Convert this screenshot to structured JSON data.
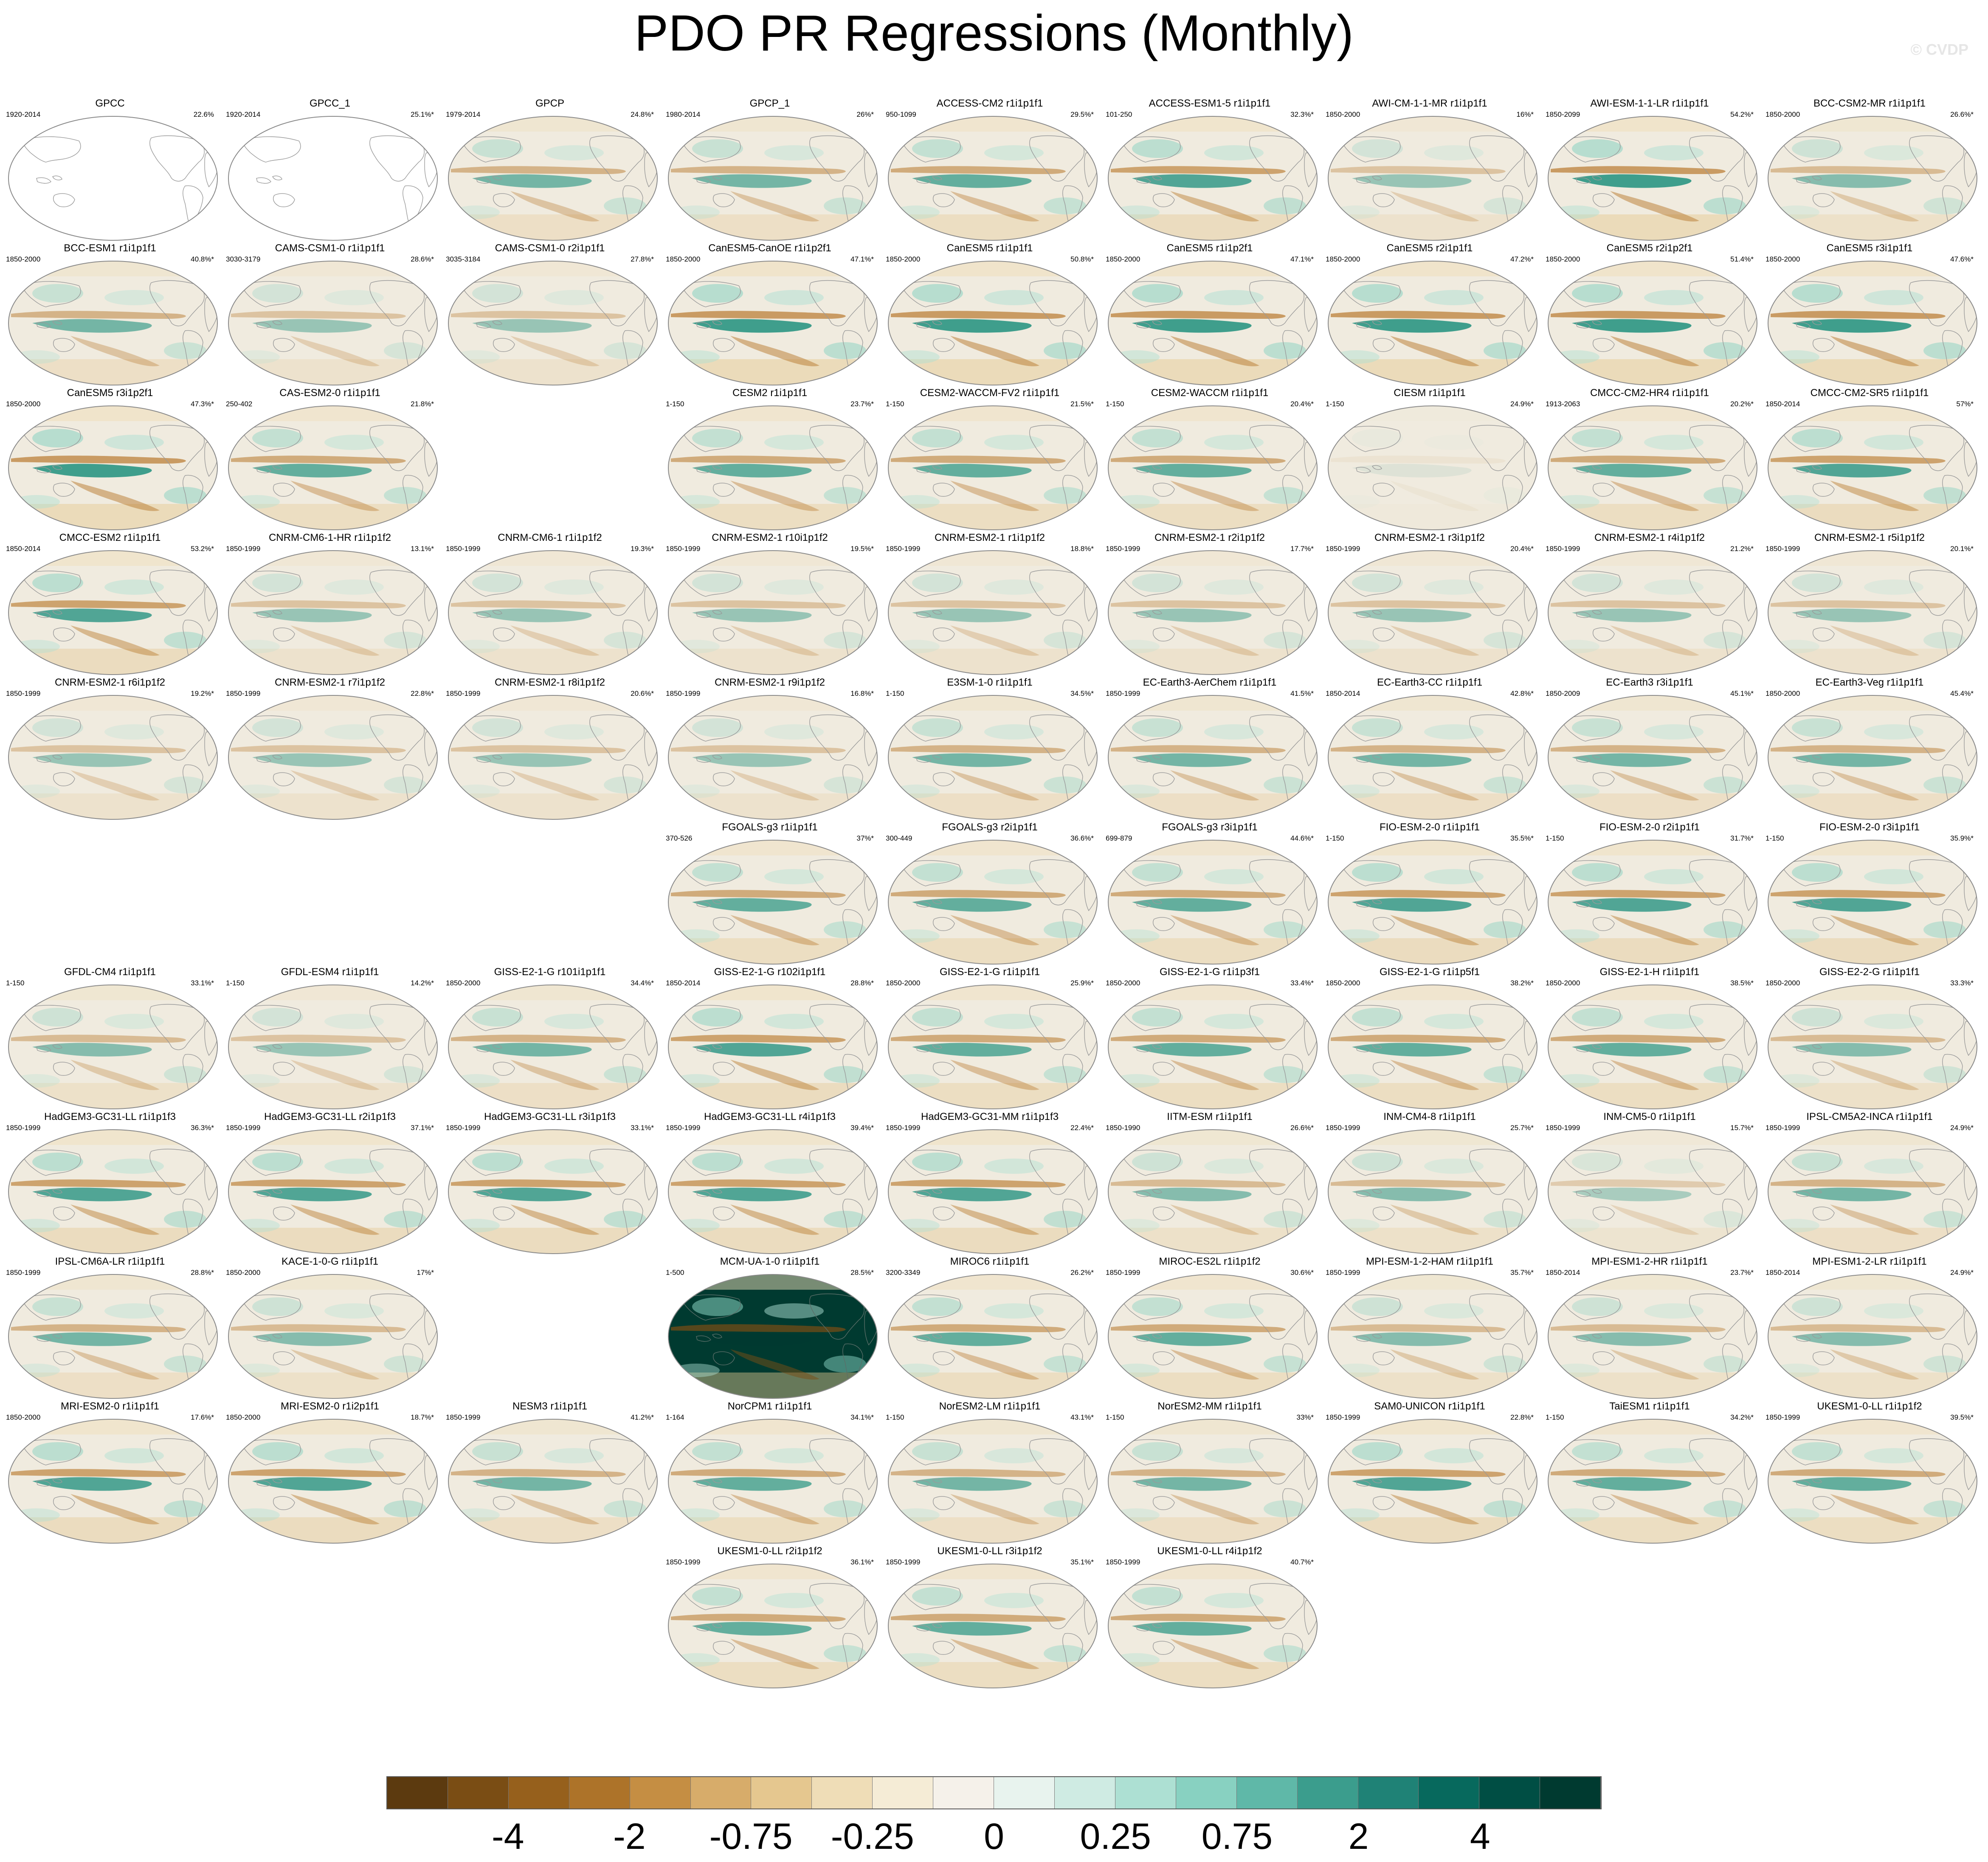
{
  "title": "PDO PR Regressions (Monthly)",
  "watermark": "© CVDP",
  "colors": {
    "dry_strong": "#b8792d",
    "wet_strong": "#20907e",
    "ocean_neutral": "#f0ebdf",
    "land_neutral": "#f5f1e6",
    "coast": "#9a9a9a"
  },
  "chart_data": {
    "type": "heatmap",
    "description_fields": "small-multiple global maps of precipitation regression on the PDO; each panel shows model name, analysis period and percent variance explained",
    "colorbar": {
      "colors": [
        "#5c3a0f",
        "#7a4d14",
        "#96601c",
        "#ad7329",
        "#c58e43",
        "#d7ac6a",
        "#e5c78f",
        "#efddb7",
        "#f5ecd6",
        "#f5f1ea",
        "#e8f3ee",
        "#cfebe3",
        "#ade0d3",
        "#88d1c1",
        "#5fb8a8",
        "#3b9d8d",
        "#1f8276",
        "#07695d",
        "#004e44",
        "#003a30"
      ],
      "tick_labels": [
        "-4",
        "-2",
        "-0.75",
        "-0.25",
        "0",
        "0.25",
        "0.75",
        "2",
        "4"
      ],
      "tick_boundaries": [
        2,
        4,
        6,
        8,
        10,
        12,
        14,
        16,
        18
      ]
    },
    "panels": [
      {
        "row": 0,
        "col": 0,
        "title": "GPCC",
        "years": "1920-2014",
        "pct": "22.6%",
        "intensity": 0,
        "blank": true
      },
      {
        "row": 0,
        "col": 1,
        "title": "GPCC_1",
        "years": "1920-2014",
        "pct": "25.1%*",
        "intensity": 0,
        "blank": true
      },
      {
        "row": 0,
        "col": 2,
        "title": "GPCP",
        "years": "1979-2014",
        "pct": "24.8%*",
        "intensity": 0.7
      },
      {
        "row": 0,
        "col": 3,
        "title": "GPCP_1",
        "years": "1980-2014",
        "pct": "26%*",
        "intensity": 0.7
      },
      {
        "row": 0,
        "col": 4,
        "title": "ACCESS-CM2 r1i1p1f1",
        "years": "950-1099",
        "pct": "29.5%*",
        "intensity": 0.8
      },
      {
        "row": 0,
        "col": 5,
        "title": "ACCESS-ESM1-5 r1i1p1f1",
        "years": "101-250",
        "pct": "32.3%*",
        "intensity": 0.9
      },
      {
        "row": 0,
        "col": 6,
        "title": "AWI-CM-1-1-MR r1i1p1f1",
        "years": "1850-2000",
        "pct": "16%*",
        "intensity": 0.5
      },
      {
        "row": 0,
        "col": 7,
        "title": "AWI-ESM-1-1-LR r1i1p1f1",
        "years": "1850-2099",
        "pct": "54.2%*",
        "intensity": 1.0
      },
      {
        "row": 0,
        "col": 8,
        "title": "BCC-CSM2-MR r1i1p1f1",
        "years": "1850-2000",
        "pct": "26.6%*",
        "intensity": 0.6
      },
      {
        "row": 1,
        "col": 0,
        "title": "BCC-ESM1 r1i1p1f1",
        "years": "1850-2000",
        "pct": "40.8%*",
        "intensity": 0.7
      },
      {
        "row": 1,
        "col": 1,
        "title": "CAMS-CSM1-0 r1i1p1f1",
        "years": "3030-3179",
        "pct": "28.6%*",
        "intensity": 0.5
      },
      {
        "row": 1,
        "col": 2,
        "title": "CAMS-CSM1-0 r2i1p1f1",
        "years": "3035-3184",
        "pct": "27.8%*",
        "intensity": 0.5
      },
      {
        "row": 1,
        "col": 3,
        "title": "CanESM5-CanOE r1i1p2f1",
        "years": "1850-2000",
        "pct": "47.1%*",
        "intensity": 1.0
      },
      {
        "row": 1,
        "col": 4,
        "title": "CanESM5 r1i1p1f1",
        "years": "1850-2000",
        "pct": "50.8%*",
        "intensity": 1.0
      },
      {
        "row": 1,
        "col": 5,
        "title": "CanESM5 r1i1p2f1",
        "years": "1850-2000",
        "pct": "47.1%*",
        "intensity": 1.0
      },
      {
        "row": 1,
        "col": 6,
        "title": "CanESM5 r2i1p1f1",
        "years": "1850-2000",
        "pct": "47.2%*",
        "intensity": 1.0
      },
      {
        "row": 1,
        "col": 7,
        "title": "CanESM5 r2i1p2f1",
        "years": "1850-2000",
        "pct": "51.4%*",
        "intensity": 1.0
      },
      {
        "row": 1,
        "col": 8,
        "title": "CanESM5 r3i1p1f1",
        "years": "1850-2000",
        "pct": "47.6%*",
        "intensity": 1.0
      },
      {
        "row": 2,
        "col": 0,
        "title": "CanESM5 r3i1p2f1",
        "years": "1850-2000",
        "pct": "47.3%*",
        "intensity": 1.0
      },
      {
        "row": 2,
        "col": 1,
        "title": "CAS-ESM2-0 r1i1p1f1",
        "years": "250-402",
        "pct": "21.8%*",
        "intensity": 0.8
      },
      {
        "row": 2,
        "col": 3,
        "title": "CESM2 r1i1p1f1",
        "years": "1-150",
        "pct": "23.7%*",
        "intensity": 0.8
      },
      {
        "row": 2,
        "col": 4,
        "title": "CESM2-WACCM-FV2 r1i1p1f1",
        "years": "1-150",
        "pct": "21.5%*",
        "intensity": 0.8
      },
      {
        "row": 2,
        "col": 5,
        "title": "CESM2-WACCM r1i1p1f1",
        "years": "1-150",
        "pct": "20.4%*",
        "intensity": 0.8
      },
      {
        "row": 2,
        "col": 6,
        "title": "CIESM r1i1p1f1",
        "years": "1-150",
        "pct": "24.9%*",
        "intensity": 0.1
      },
      {
        "row": 2,
        "col": 7,
        "title": "CMCC-CM2-HR4 r1i1p1f1",
        "years": "1913-2063",
        "pct": "20.2%*",
        "intensity": 0.8
      },
      {
        "row": 2,
        "col": 8,
        "title": "CMCC-CM2-SR5 r1i1p1f1",
        "years": "1850-2014",
        "pct": "57%*",
        "intensity": 0.9
      },
      {
        "row": 3,
        "col": 0,
        "title": "CMCC-ESM2 r1i1p1f1",
        "years": "1850-2014",
        "pct": "53.2%*",
        "intensity": 0.9
      },
      {
        "row": 3,
        "col": 1,
        "title": "CNRM-CM6-1-HR r1i1p1f2",
        "years": "1850-1999",
        "pct": "13.1%*",
        "intensity": 0.5
      },
      {
        "row": 3,
        "col": 2,
        "title": "CNRM-CM6-1 r1i1p1f2",
        "years": "1850-1999",
        "pct": "19.3%*",
        "intensity": 0.5
      },
      {
        "row": 3,
        "col": 3,
        "title": "CNRM-ESM2-1 r10i1p1f2",
        "years": "1850-1999",
        "pct": "19.5%*",
        "intensity": 0.5
      },
      {
        "row": 3,
        "col": 4,
        "title": "CNRM-ESM2-1 r1i1p1f2",
        "years": "1850-1999",
        "pct": "18.8%*",
        "intensity": 0.5
      },
      {
        "row": 3,
        "col": 5,
        "title": "CNRM-ESM2-1 r2i1p1f2",
        "years": "1850-1999",
        "pct": "17.7%*",
        "intensity": 0.5
      },
      {
        "row": 3,
        "col": 6,
        "title": "CNRM-ESM2-1 r3i1p1f2",
        "years": "1850-1999",
        "pct": "20.4%*",
        "intensity": 0.5
      },
      {
        "row": 3,
        "col": 7,
        "title": "CNRM-ESM2-1 r4i1p1f2",
        "years": "1850-1999",
        "pct": "21.2%*",
        "intensity": 0.5
      },
      {
        "row": 3,
        "col": 8,
        "title": "CNRM-ESM2-1 r5i1p1f2",
        "years": "1850-1999",
        "pct": "20.1%*",
        "intensity": 0.5
      },
      {
        "row": 4,
        "col": 0,
        "title": "CNRM-ESM2-1 r6i1p1f2",
        "years": "1850-1999",
        "pct": "19.2%*",
        "intensity": 0.5
      },
      {
        "row": 4,
        "col": 1,
        "title": "CNRM-ESM2-1 r7i1p1f2",
        "years": "1850-1999",
        "pct": "22.8%*",
        "intensity": 0.5
      },
      {
        "row": 4,
        "col": 2,
        "title": "CNRM-ESM2-1 r8i1p1f2",
        "years": "1850-1999",
        "pct": "20.6%*",
        "intensity": 0.5
      },
      {
        "row": 4,
        "col": 3,
        "title": "CNRM-ESM2-1 r9i1p1f2",
        "years": "1850-1999",
        "pct": "16.8%*",
        "intensity": 0.5
      },
      {
        "row": 4,
        "col": 4,
        "title": "E3SM-1-0 r1i1p1f1",
        "years": "1-150",
        "pct": "34.5%*",
        "intensity": 0.7
      },
      {
        "row": 4,
        "col": 5,
        "title": "EC-Earth3-AerChem r1i1p1f1",
        "years": "1850-1999",
        "pct": "41.5%*",
        "intensity": 0.7
      },
      {
        "row": 4,
        "col": 6,
        "title": "EC-Earth3-CC r1i1p1f1",
        "years": "1850-2014",
        "pct": "42.8%*",
        "intensity": 0.7
      },
      {
        "row": 4,
        "col": 7,
        "title": "EC-Earth3 r3i1p1f1",
        "years": "1850-2009",
        "pct": "45.1%*",
        "intensity": 0.7
      },
      {
        "row": 4,
        "col": 8,
        "title": "EC-Earth3-Veg r1i1p1f1",
        "years": "1850-2000",
        "pct": "45.4%*",
        "intensity": 0.7
      },
      {
        "row": 5,
        "col": 3,
        "title": "FGOALS-g3 r1i1p1f1",
        "years": "370-526",
        "pct": "37%*",
        "intensity": 0.8
      },
      {
        "row": 5,
        "col": 4,
        "title": "FGOALS-g3 r2i1p1f1",
        "years": "300-449",
        "pct": "36.6%*",
        "intensity": 0.8
      },
      {
        "row": 5,
        "col": 5,
        "title": "FGOALS-g3 r3i1p1f1",
        "years": "699-879",
        "pct": "44.6%*",
        "intensity": 0.8
      },
      {
        "row": 5,
        "col": 6,
        "title": "FIO-ESM-2-0 r1i1p1f1",
        "years": "1-150",
        "pct": "35.5%*",
        "intensity": 0.9
      },
      {
        "row": 5,
        "col": 7,
        "title": "FIO-ESM-2-0 r2i1p1f1",
        "years": "1-150",
        "pct": "31.7%*",
        "intensity": 0.9
      },
      {
        "row": 5,
        "col": 8,
        "title": "FIO-ESM-2-0 r3i1p1f1",
        "years": "1-150",
        "pct": "35.9%*",
        "intensity": 0.9
      },
      {
        "row": 6,
        "col": 0,
        "title": "GFDL-CM4 r1i1p1f1",
        "years": "1-150",
        "pct": "33.1%*",
        "intensity": 0.6
      },
      {
        "row": 6,
        "col": 1,
        "title": "GFDL-ESM4 r1i1p1f1",
        "years": "1-150",
        "pct": "14.2%*",
        "intensity": 0.5
      },
      {
        "row": 6,
        "col": 2,
        "title": "GISS-E2-1-G r101i1p1f1",
        "years": "1850-2000",
        "pct": "34.4%*",
        "intensity": 0.7
      },
      {
        "row": 6,
        "col": 3,
        "title": "GISS-E2-1-G r102i1p1f1",
        "years": "1850-2014",
        "pct": "28.8%*",
        "intensity": 0.9
      },
      {
        "row": 6,
        "col": 4,
        "title": "GISS-E2-1-G r1i1p1f1",
        "years": "1850-2000",
        "pct": "25.9%*",
        "intensity": 0.8
      },
      {
        "row": 6,
        "col": 5,
        "title": "GISS-E2-1-G r1i1p3f1",
        "years": "1850-2000",
        "pct": "33.4%*",
        "intensity": 0.8
      },
      {
        "row": 6,
        "col": 6,
        "title": "GISS-E2-1-G r1i1p5f1",
        "years": "1850-2000",
        "pct": "38.2%*",
        "intensity": 0.8
      },
      {
        "row": 6,
        "col": 7,
        "title": "GISS-E2-1-H r1i1p1f1",
        "years": "1850-2000",
        "pct": "38.5%*",
        "intensity": 0.8
      },
      {
        "row": 6,
        "col": 8,
        "title": "GISS-E2-2-G r1i1p1f1",
        "years": "1850-2000",
        "pct": "33.3%*",
        "intensity": 0.6
      },
      {
        "row": 7,
        "col": 0,
        "title": "HadGEM3-GC31-LL r1i1p1f3",
        "years": "1850-1999",
        "pct": "36.3%*",
        "intensity": 0.9
      },
      {
        "row": 7,
        "col": 1,
        "title": "HadGEM3-GC31-LL r2i1p1f3",
        "years": "1850-1999",
        "pct": "37.1%*",
        "intensity": 0.9
      },
      {
        "row": 7,
        "col": 2,
        "title": "HadGEM3-GC31-LL r3i1p1f3",
        "years": "1850-1999",
        "pct": "33.1%*",
        "intensity": 0.9
      },
      {
        "row": 7,
        "col": 3,
        "title": "HadGEM3-GC31-LL r4i1p1f3",
        "years": "1850-1999",
        "pct": "39.4%*",
        "intensity": 0.9
      },
      {
        "row": 7,
        "col": 4,
        "title": "HadGEM3-GC31-MM r1i1p1f3",
        "years": "1850-1999",
        "pct": "22.4%*",
        "intensity": 0.9
      },
      {
        "row": 7,
        "col": 5,
        "title": "IITM-ESM r1i1p1f1",
        "years": "1850-1990",
        "pct": "26.6%*",
        "intensity": 0.6
      },
      {
        "row": 7,
        "col": 6,
        "title": "INM-CM4-8 r1i1p1f1",
        "years": "1850-1999",
        "pct": "25.7%*",
        "intensity": 0.6
      },
      {
        "row": 7,
        "col": 7,
        "title": "INM-CM5-0 r1i1p1f1",
        "years": "1850-1999",
        "pct": "15.7%*",
        "intensity": 0.4
      },
      {
        "row": 7,
        "col": 8,
        "title": "IPSL-CM5A2-INCA r1i1p1f1",
        "years": "1850-1999",
        "pct": "24.9%*",
        "intensity": 0.7
      },
      {
        "row": 8,
        "col": 0,
        "title": "IPSL-CM6A-LR r1i1p1f1",
        "years": "1850-1999",
        "pct": "28.8%*",
        "intensity": 0.7
      },
      {
        "row": 8,
        "col": 1,
        "title": "KACE-1-0-G r1i1p1f1",
        "years": "1850-2000",
        "pct": "17%*",
        "intensity": 0.6
      },
      {
        "row": 8,
        "col": 3,
        "title": "MCM-UA-1-0 r1i1p1f1",
        "years": "1-500",
        "pct": "28.5%*",
        "intensity": 1.0,
        "saturated": true
      },
      {
        "row": 8,
        "col": 4,
        "title": "MIROC6 r1i1p1f1",
        "years": "3200-3349",
        "pct": "26.2%*",
        "intensity": 0.8
      },
      {
        "row": 8,
        "col": 5,
        "title": "MIROC-ES2L r1i1p1f2",
        "years": "1850-1999",
        "pct": "30.6%*",
        "intensity": 0.8
      },
      {
        "row": 8,
        "col": 6,
        "title": "MPI-ESM-1-2-HAM r1i1p1f1",
        "years": "1850-1999",
        "pct": "35.7%*",
        "intensity": 0.6
      },
      {
        "row": 8,
        "col": 7,
        "title": "MPI-ESM1-2-HR r1i1p1f1",
        "years": "1850-2014",
        "pct": "23.7%*",
        "intensity": 0.6
      },
      {
        "row": 8,
        "col": 8,
        "title": "MPI-ESM1-2-LR r1i1p1f1",
        "years": "1850-2014",
        "pct": "24.9%*",
        "intensity": 0.6
      },
      {
        "row": 9,
        "col": 0,
        "title": "MRI-ESM2-0 r1i1p1f1",
        "years": "1850-2000",
        "pct": "17.6%*",
        "intensity": 0.9
      },
      {
        "row": 9,
        "col": 1,
        "title": "MRI-ESM2-0 r1i2p1f1",
        "years": "1850-2000",
        "pct": "18.7%*",
        "intensity": 0.9
      },
      {
        "row": 9,
        "col": 2,
        "title": "NESM3 r1i1p1f1",
        "years": "1850-1999",
        "pct": "41.2%*",
        "intensity": 0.7
      },
      {
        "row": 9,
        "col": 3,
        "title": "NorCPM1 r1i1p1f1",
        "years": "1-164",
        "pct": "34.1%*",
        "intensity": 0.8
      },
      {
        "row": 9,
        "col": 4,
        "title": "NorESM2-LM r1i1p1f1",
        "years": "1-150",
        "pct": "43.1%*",
        "intensity": 0.7
      },
      {
        "row": 9,
        "col": 5,
        "title": "NorESM2-MM r1i1p1f1",
        "years": "1-150",
        "pct": "33%*",
        "intensity": 0.7
      },
      {
        "row": 9,
        "col": 6,
        "title": "SAM0-UNICON r1i1p1f1",
        "years": "1850-1999",
        "pct": "22.8%*",
        "intensity": 0.9
      },
      {
        "row": 9,
        "col": 7,
        "title": "TaiESM1 r1i1p1f1",
        "years": "1-150",
        "pct": "34.2%*",
        "intensity": 0.8
      },
      {
        "row": 9,
        "col": 8,
        "title": "UKESM1-0-LL r1i1p1f2",
        "years": "1850-1999",
        "pct": "39.5%*",
        "intensity": 0.8
      },
      {
        "row": 10,
        "col": 3,
        "title": "UKESM1-0-LL r2i1p1f2",
        "years": "1850-1999",
        "pct": "36.1%*",
        "intensity": 0.8
      },
      {
        "row": 10,
        "col": 4,
        "title": "UKESM1-0-LL r3i1p1f2",
        "years": "1850-1999",
        "pct": "35.1%*",
        "intensity": 0.8
      },
      {
        "row": 10,
        "col": 5,
        "title": "UKESM1-0-LL r4i1p1f2",
        "years": "1850-1999",
        "pct": "40.7%*",
        "intensity": 0.8
      }
    ]
  }
}
